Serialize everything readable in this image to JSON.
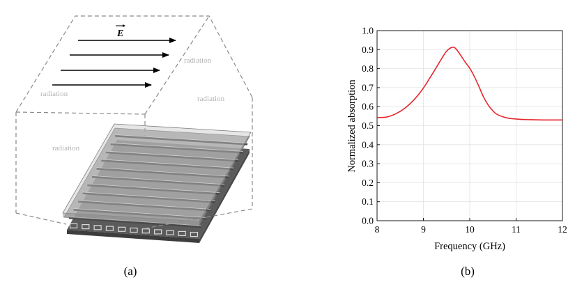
{
  "panel_a": {
    "caption": "(a)",
    "field_label": "E",
    "radiation_labels": [
      "radiation",
      "radiation",
      "radiation",
      "radiation"
    ]
  },
  "panel_b": {
    "caption": "(b)"
  },
  "chart_data": {
    "type": "line",
    "title": "",
    "xlabel": "Frequency (GHz)",
    "ylabel": "Normalized absorption",
    "xlim": [
      8,
      12
    ],
    "ylim": [
      0,
      1.0
    ],
    "xticks": [
      8,
      9,
      10,
      11,
      12
    ],
    "yticks": [
      0.0,
      0.1,
      0.2,
      0.3,
      0.4,
      0.5,
      0.6,
      0.7,
      0.8,
      0.9,
      1.0
    ],
    "grid": true,
    "legend": "none",
    "series": [
      {
        "color": "#e8252b",
        "x": [
          8.0,
          8.2,
          8.4,
          8.6,
          8.8,
          9.0,
          9.2,
          9.4,
          9.5,
          9.6,
          9.65,
          9.7,
          9.8,
          9.9,
          10.0,
          10.1,
          10.2,
          10.3,
          10.4,
          10.5,
          10.6,
          10.8,
          11.0,
          11.2,
          11.4,
          11.6,
          11.8,
          12.0
        ],
        "y": [
          0.543,
          0.545,
          0.562,
          0.592,
          0.637,
          0.698,
          0.775,
          0.855,
          0.892,
          0.911,
          0.912,
          0.905,
          0.872,
          0.835,
          0.802,
          0.758,
          0.705,
          0.65,
          0.608,
          0.578,
          0.558,
          0.541,
          0.535,
          0.532,
          0.531,
          0.53,
          0.53,
          0.53
        ]
      }
    ]
  }
}
